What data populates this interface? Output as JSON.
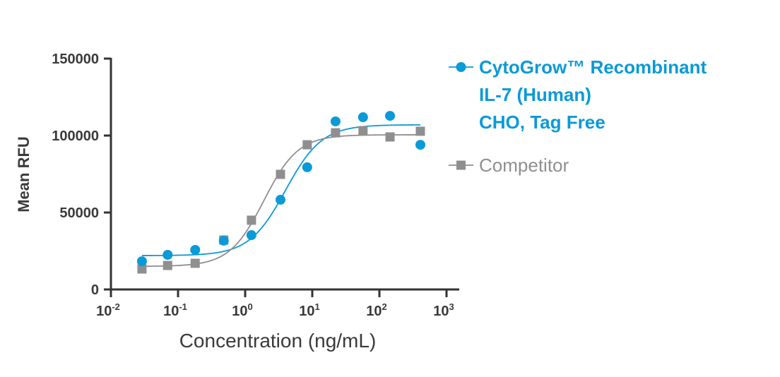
{
  "chart_data": {
    "type": "scatter",
    "title": "",
    "xlabel": "Concentration (ng/mL)",
    "ylabel": "Mean RFU",
    "xscale": "log",
    "xlim": [
      0.01,
      1000
    ],
    "ylim": [
      0,
      150000
    ],
    "x_ticks": [
      {
        "base": "10",
        "exp": "-2",
        "value": 0.01
      },
      {
        "base": "10",
        "exp": "-1",
        "value": 0.1
      },
      {
        "base": "10",
        "exp": "0",
        "value": 1
      },
      {
        "base": "10",
        "exp": "1",
        "value": 10
      },
      {
        "base": "10",
        "exp": "2",
        "value": 100
      },
      {
        "base": "10",
        "exp": "3",
        "value": 1000
      }
    ],
    "y_ticks": [
      {
        "label": "0",
        "value": 0
      },
      {
        "label": "50000",
        "value": 50000
      },
      {
        "label": "100000",
        "value": 100000
      },
      {
        "label": "150000",
        "value": 150000
      }
    ],
    "grid": false,
    "legend_position": "right",
    "series": [
      {
        "name": "CytoGrow™ Recombinant IL-7 (Human) CHO, Tag Free",
        "legend_lines": [
          "CytoGrow™ Recombinant",
          "IL-7 (Human)",
          "CHO, Tag Free"
        ],
        "marker": "circle",
        "color": "#0a9ad7",
        "x": [
          0.029,
          0.07,
          0.18,
          0.48,
          1.24,
          3.36,
          8.4,
          22.2,
          57,
          144,
          408
        ],
        "y": [
          18300,
          22500,
          25700,
          31700,
          35300,
          58300,
          79400,
          109200,
          111900,
          112800,
          94000
        ],
        "fit": {
          "bottom": 22000,
          "top": 107000,
          "ec50": 4.0,
          "hill": 1.6
        }
      },
      {
        "name": "Competitor",
        "legend_lines": [
          "Competitor"
        ],
        "marker": "square",
        "color": "#8f8f8f",
        "x": [
          0.029,
          0.07,
          0.18,
          0.48,
          1.24,
          3.36,
          8.4,
          22.2,
          57,
          144,
          408
        ],
        "y": [
          13300,
          15600,
          17000,
          32100,
          45000,
          74800,
          94000,
          101800,
          103200,
          99100,
          102800
        ],
        "fit": {
          "bottom": 15000,
          "top": 100500,
          "ec50": 1.9,
          "hill": 1.7
        }
      }
    ]
  },
  "colors": {
    "axis": "#333333",
    "text": "#3a3a3a"
  }
}
